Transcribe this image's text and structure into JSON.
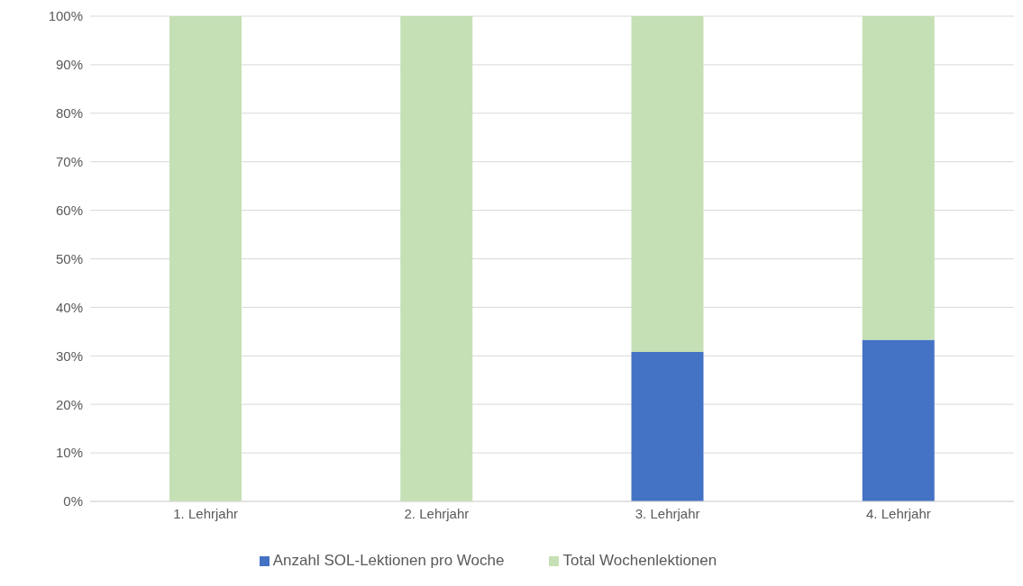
{
  "chart_data": {
    "type": "bar",
    "stacked": true,
    "categories": [
      "1. Lehrjahr",
      "2. Lehrjahr",
      "3. Lehrjahr",
      "4. Lehrjahr"
    ],
    "series": [
      {
        "name": "Anzahl SOL-Lektionen pro Woche",
        "color": "#4472c4",
        "values": [
          0,
          0,
          30.8,
          33.3
        ]
      },
      {
        "name": "Total Wochenlektionen",
        "color": "#c5e0b4",
        "values": [
          100,
          100,
          69.2,
          66.7
        ]
      }
    ],
    "ylim": [
      0,
      100
    ],
    "yticks": [
      {
        "value": 0,
        "label": "0%"
      },
      {
        "value": 10,
        "label": "10%"
      },
      {
        "value": 20,
        "label": "20%"
      },
      {
        "value": 30,
        "label": "30%"
      },
      {
        "value": 40,
        "label": "40%"
      },
      {
        "value": 50,
        "label": "50%"
      },
      {
        "value": 60,
        "label": "60%"
      },
      {
        "value": 70,
        "label": "70%"
      },
      {
        "value": 80,
        "label": "80%"
      },
      {
        "value": 90,
        "label": "90%"
      },
      {
        "value": 100,
        "label": "100%"
      }
    ],
    "grid": "y",
    "legend": "bottom"
  }
}
